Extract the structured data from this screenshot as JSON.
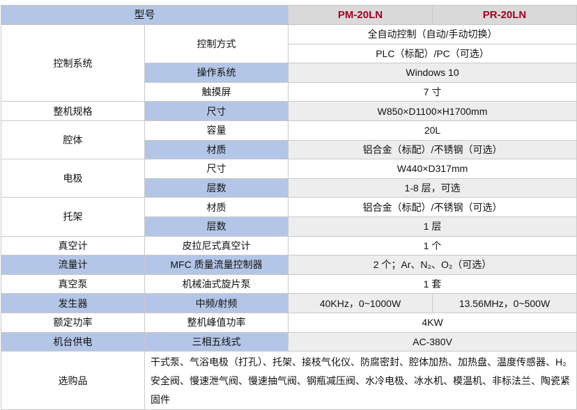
{
  "header": {
    "label": "型号",
    "models": [
      "PM-20LN",
      "PR-20LN"
    ]
  },
  "rows": [
    {
      "group": "控制系统",
      "span": 4,
      "item": "控制方式",
      "itemSpan": 2,
      "values": [
        "全自动控制（自动/手动切换）"
      ]
    },
    {
      "values": [
        "PLC（标配）/PC（可选）"
      ]
    },
    {
      "item": "操作系统",
      "values": [
        "Windows 10"
      ]
    },
    {
      "item": "触摸屏",
      "values": [
        "7 寸"
      ]
    },
    {
      "group": "整机规格",
      "span": 1,
      "item": "尺寸",
      "values": [
        "W850×D1100×H1700mm"
      ]
    },
    {
      "group": "腔体",
      "span": 2,
      "item": "容量",
      "values": [
        "20L"
      ]
    },
    {
      "item": "材质",
      "values": [
        "铝合金（标配）/不锈钢（可选）"
      ]
    },
    {
      "group": "电极",
      "span": 2,
      "item": "尺寸",
      "values": [
        "W440×D317mm"
      ]
    },
    {
      "item": "层数",
      "values": [
        "1-8 层，可选"
      ]
    },
    {
      "group": "托架",
      "span": 2,
      "item": "材质",
      "values": [
        "铝合金（标配）/不锈钢（可选）"
      ]
    },
    {
      "item": "层数",
      "values": [
        "1 层"
      ]
    },
    {
      "group": "真空计",
      "span": 1,
      "item": "皮拉尼式真空计",
      "values": [
        "1 个"
      ]
    },
    {
      "group": "流量计",
      "span": 1,
      "item": "MFC 质量流量控制器",
      "values": [
        "2 个；Ar、N₂、O₂（可选）"
      ]
    },
    {
      "group": "真空泵",
      "span": 1,
      "item": "机械油式旋片泵",
      "values": [
        "1 套"
      ]
    },
    {
      "group": "发生器",
      "span": 1,
      "item": "中频/射频",
      "values": [
        "40KHz，0~1000W",
        "13.56MHz，0~500W"
      ]
    },
    {
      "group": "额定功率",
      "span": 1,
      "item": "整机峰值功率",
      "values": [
        "4KW"
      ]
    },
    {
      "group": "机台供电",
      "span": 1,
      "item": "三相五线式",
      "values": [
        "AC-380V"
      ]
    }
  ],
  "options": {
    "label": "选购品",
    "text": "干式泵、气浴电极（打孔）、托架、接枝气化仪、防腐密封、腔体加热、加热盘、温度传感器、H₂ 安全阀、慢速泄气阀、慢速抽气阀、钢瓶减压阀、水冷电极、冰水机、模温机、非标法兰、陶瓷紧固件"
  },
  "colors": {
    "header_blue": "#b4c6e7",
    "model_red": "#a50021",
    "value_gray": "#ededed"
  }
}
